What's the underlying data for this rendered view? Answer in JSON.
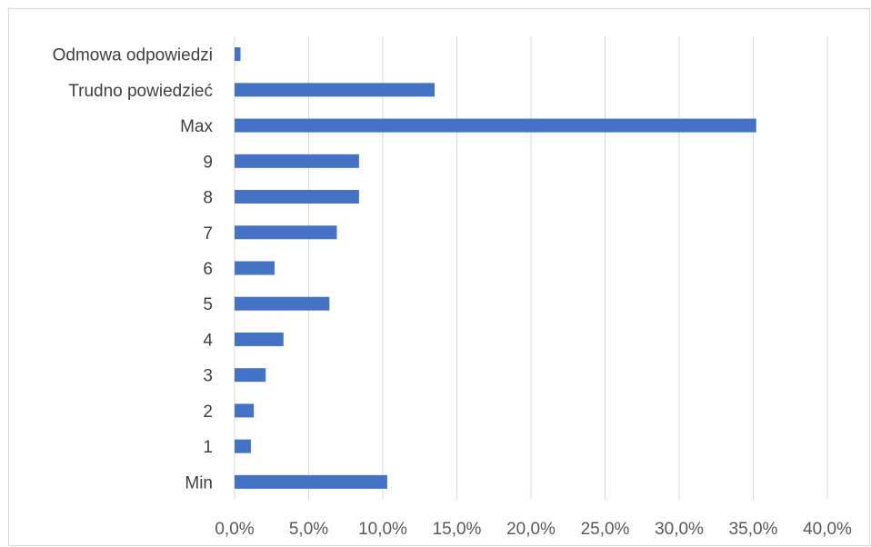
{
  "chart_data": {
    "type": "bar",
    "orientation": "horizontal",
    "categories": [
      "Odmowa odpowiedzi",
      "Trudno powiedzieć",
      "Max",
      "9",
      "8",
      "7",
      "6",
      "5",
      "4",
      "3",
      "2",
      "1",
      "Min"
    ],
    "values": [
      0.4,
      13.5,
      35.2,
      8.4,
      8.4,
      6.9,
      2.7,
      6.4,
      3.3,
      2.1,
      1.3,
      1.1,
      10.3
    ],
    "x_ticks": [
      "0,0%",
      "5,0%",
      "10,0%",
      "15,0%",
      "20,0%",
      "25,0%",
      "30,0%",
      "35,0%",
      "40,0%"
    ],
    "xlim": [
      0,
      40
    ],
    "grid": "vertical",
    "legend": "none",
    "bar_color": "#4472c4",
    "gridline_color": "#d9d9d9"
  }
}
